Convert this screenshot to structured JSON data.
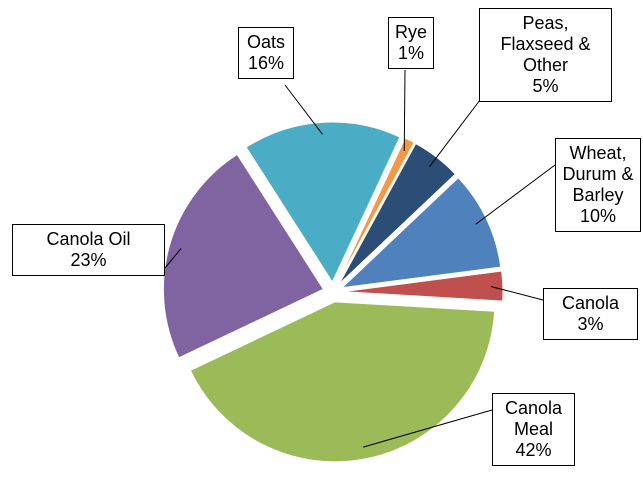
{
  "chart_data": {
    "type": "pie",
    "categories": [
      "Rye",
      "Peas, Flaxseed & Other",
      "Wheat, Durum & Barley",
      "Canola",
      "Canola Meal",
      "Canola Oil",
      "Oats"
    ],
    "values": [
      1,
      5,
      10,
      3,
      42,
      23,
      16
    ],
    "value_labels": [
      "1%",
      "5%",
      "10%",
      "3%",
      "42%",
      "23%",
      "16%"
    ],
    "colors": [
      "#f79646",
      "#2c4d75",
      "#4f81bd",
      "#c0504d",
      "#9bbb59",
      "#8064a2",
      "#4bacc6"
    ]
  }
}
